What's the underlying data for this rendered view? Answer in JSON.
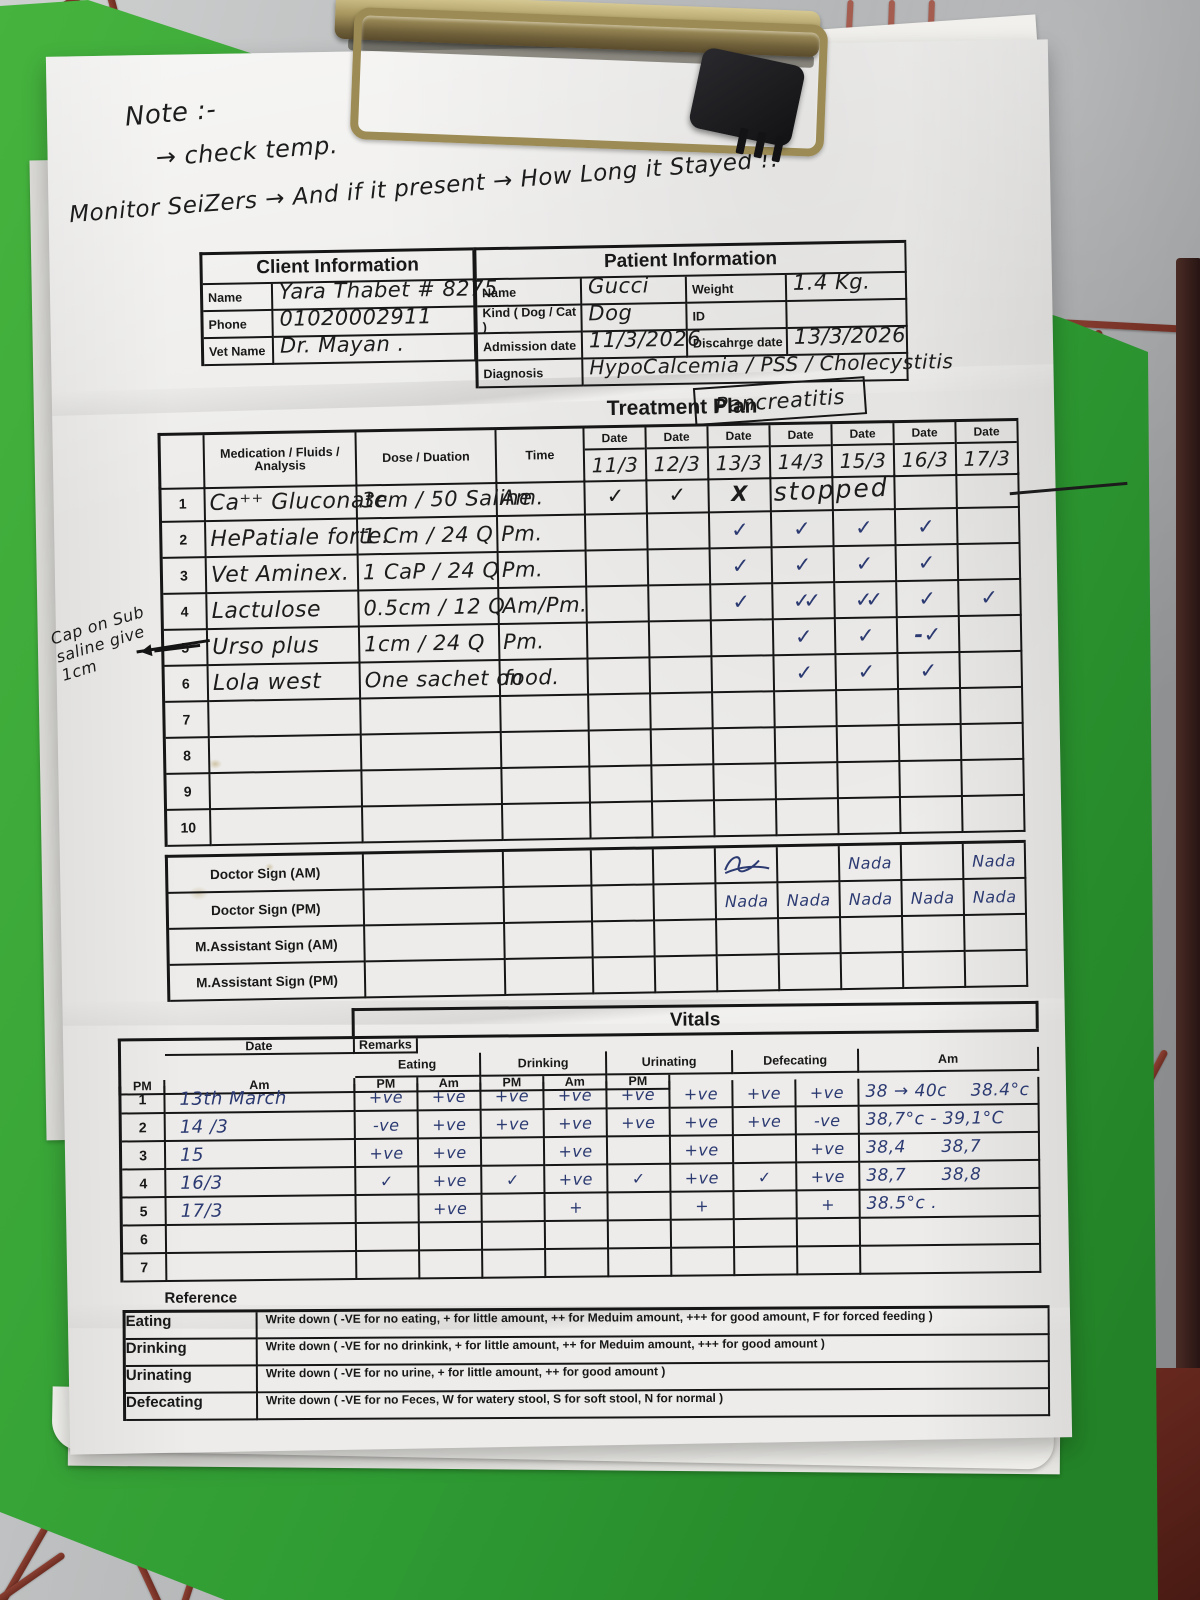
{
  "colors": {
    "ink_black": "#1c1c1c",
    "ink_blue": "#2c3a72",
    "board_green": "#35a437",
    "cage_red": "#7c2d23",
    "clip_gold": "#9c8b54",
    "paper": "#edecea"
  },
  "note": {
    "line1": "Note :-",
    "line2": "→ check temp.",
    "line3": "Monitor SeiZers → And if it present → How Long it Stayed !!"
  },
  "client": {
    "title": "Client Information",
    "rows": [
      {
        "label": "Name",
        "value": "Yara Thabet # 8275"
      },
      {
        "label": "Phone",
        "value": "01020002911"
      },
      {
        "label": "Vet Name",
        "value": "Dr. Mayan ."
      }
    ]
  },
  "patient": {
    "title": "Patient Information",
    "name_label": "Name",
    "name": "Gucci",
    "weight_label": "Weight",
    "weight": "1.4 Kg.",
    "kind_label": "Kind ( Dog / Cat )",
    "kind": "Dog",
    "id_label": "ID",
    "id": "",
    "admission_label": "Admission date",
    "admission": "11/3/2026",
    "discharge_label": "Discahrge date",
    "discharge": "13/3/2026",
    "diagnosis_label": "Diagnosis",
    "diagnosis": "HypoCalcemia / PSS / Cholecystitis",
    "diagnosis2": "Pancreatitis"
  },
  "treatment": {
    "title": "Treatment Plan",
    "col_med": "Medication / Fluids / Analysis",
    "col_dose": "Dose / Duation",
    "col_time": "Time",
    "date_label": "Date",
    "dates": [
      "11/3",
      "12/3",
      "13/3",
      "14/3",
      "15/3",
      "16/3",
      "17/3"
    ],
    "rows": [
      {
        "num": "1",
        "med": "Ca⁺⁺ Gluconate",
        "dose": "3cm / 50 Saline",
        "time": "Am.",
        "ink": "black",
        "marks": [
          "✓",
          "✓",
          "X",
          "",
          "",
          "",
          ""
        ],
        "stopped": "stopped"
      },
      {
        "num": "2",
        "med": "HePatiale forte.",
        "dose": "1 Cm / 24 Q",
        "time": "Pm.",
        "ink": "blue",
        "marks": [
          "",
          "",
          "✓",
          "✓",
          "✓",
          "✓",
          ""
        ]
      },
      {
        "num": "3",
        "med": "Vet Aminex.",
        "dose": "1 CaP / 24 Q",
        "time": "Pm.",
        "ink": "blue",
        "marks": [
          "",
          "",
          "✓",
          "✓",
          "✓",
          "✓",
          ""
        ]
      },
      {
        "num": "4",
        "med": "Lactulose",
        "dose": "0.5cm / 12 Q",
        "time": "Am/Pm.",
        "ink": "blue",
        "marks": [
          "",
          "",
          "✓",
          "✓✓",
          "✓✓",
          "✓",
          "✓"
        ]
      },
      {
        "num": "5",
        "med": "Urso plus",
        "dose": "1cm / 24 Q",
        "time": "Pm.",
        "ink": "blue",
        "marks": [
          "",
          "",
          "",
          "✓",
          "✓",
          "-✓",
          ""
        ]
      },
      {
        "num": "6",
        "med": "Lola west",
        "dose": "One sachet on",
        "time": "food.",
        "ink": "blue",
        "marks": [
          "",
          "",
          "",
          "✓",
          "✓",
          "✓",
          ""
        ]
      },
      {
        "num": "7",
        "med": "",
        "dose": "",
        "time": "",
        "ink": "blue",
        "marks": [
          "",
          "",
          "",
          "",
          "",
          "",
          ""
        ]
      },
      {
        "num": "8",
        "med": "",
        "dose": "",
        "time": "",
        "ink": "blue",
        "marks": [
          "",
          "",
          "",
          "",
          "",
          "",
          ""
        ]
      },
      {
        "num": "9",
        "med": "",
        "dose": "",
        "time": "",
        "ink": "blue",
        "marks": [
          "",
          "",
          "",
          "",
          "",
          "",
          ""
        ]
      },
      {
        "num": "10",
        "med": "",
        "dose": "",
        "time": "",
        "ink": "blue",
        "marks": [
          "",
          "",
          "",
          "",
          "",
          "",
          ""
        ]
      }
    ],
    "margin_note": "Cap on Sub saline give 1cm",
    "sign_rows": [
      "Doctor Sign (AM)",
      "Doctor Sign (PM)",
      "M.Assistant Sign (AM)",
      "M.Assistant Sign (PM)"
    ],
    "signs": {
      "am": [
        "",
        "",
        "sig",
        "",
        "Nada",
        "",
        "Nada"
      ],
      "pm": [
        "",
        "",
        "Nada",
        "Nada",
        "Nada",
        "Nada",
        "Nada"
      ],
      "assist_am": [
        "",
        "",
        "",
        "",
        "",
        "",
        ""
      ],
      "assist_pm": [
        "",
        "",
        "",
        "",
        "",
        "",
        ""
      ]
    }
  },
  "vitals": {
    "title": "Vitals",
    "date_label": "Date",
    "am": "Am",
    "pm": "PM",
    "remarks_label": "Remarks",
    "groups": [
      {
        "label": "Eating"
      },
      {
        "label": "Drinking"
      },
      {
        "label": "Urinating"
      },
      {
        "label": "Defecating"
      }
    ],
    "rows": [
      {
        "num": "1",
        "date": "13th March",
        "values": [
          "+ve",
          "+ve",
          "+ve",
          "+ve",
          "+ve",
          "+ve",
          "+ve",
          "+ve"
        ],
        "remarks": "38 → 40c    38.4°c"
      },
      {
        "num": "2",
        "date": "14 /3",
        "values": [
          "-ve",
          "+ve",
          "+ve",
          "+ve",
          "+ve",
          "+ve",
          "+ve",
          "-ve"
        ],
        "remarks": "38,7°c - 39,1°C"
      },
      {
        "num": "3",
        "date": "15",
        "values": [
          "+ve",
          "+ve",
          "",
          "+ve",
          "",
          "+ve",
          "",
          "+ve"
        ],
        "remarks": "38,4      38,7"
      },
      {
        "num": "4",
        "date": "16/3",
        "values": [
          "✓",
          "+ve",
          "✓",
          "+ve",
          "✓",
          "+ve",
          "✓",
          "+ve"
        ],
        "remarks": "38,7      38,8"
      },
      {
        "num": "5",
        "date": "17/3",
        "values": [
          "",
          "+ve",
          "",
          "+",
          "",
          "+",
          "",
          "+"
        ],
        "remarks": "38.5°c ."
      },
      {
        "num": "6",
        "date": "",
        "values": [
          "",
          "",
          "",
          "",
          "",
          "",
          "",
          ""
        ],
        "remarks": ""
      },
      {
        "num": "7",
        "date": "",
        "values": [
          "",
          "",
          "",
          "",
          "",
          "",
          "",
          ""
        ],
        "remarks": ""
      }
    ]
  },
  "reference": {
    "title": "Reference",
    "rows": [
      {
        "label": "Eating",
        "text": "Write down ( -VE for no eating, + for little amount, ++ for Meduim amount, +++ for good amount, F for forced feeding )"
      },
      {
        "label": "Drinking",
        "text": "Write down ( -VE for no drinkink, + for little amount, ++ for Meduim amount, +++ for good amount )"
      },
      {
        "label": "Urinating",
        "text": "Write down ( -VE for no urine, + for little amount, ++ for good amount )"
      },
      {
        "label": "Defecating",
        "text": "Write down ( -VE for no Feces, W for watery stool, S for soft stool, N  for normal  )"
      }
    ]
  }
}
